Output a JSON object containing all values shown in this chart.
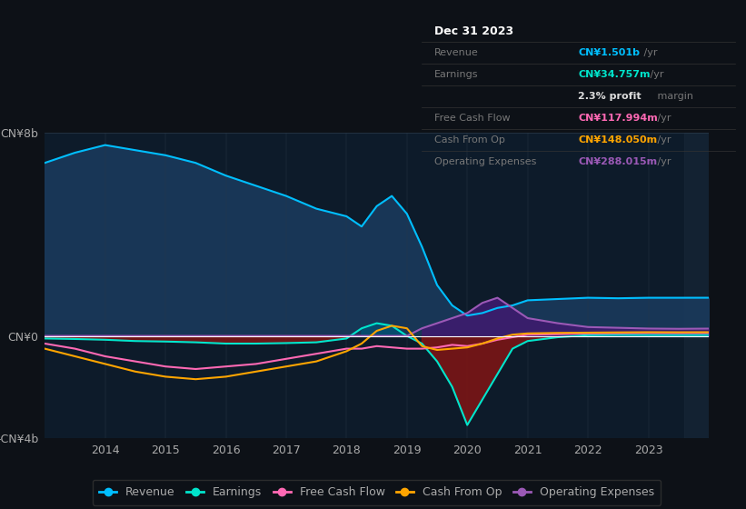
{
  "background_color": "#0d1117",
  "plot_bg_color": "#0d1b2a",
  "ylim": [
    -4000000000,
    8000000000
  ],
  "ytick_labels": [
    "-CN¥4b",
    "CN¥0",
    "CN¥8b"
  ],
  "years": [
    2013.0,
    2013.5,
    2014.0,
    2014.5,
    2015.0,
    2015.5,
    2016.0,
    2016.5,
    2017.0,
    2017.5,
    2018.0,
    2018.25,
    2018.5,
    2018.75,
    2019.0,
    2019.25,
    2019.5,
    2019.75,
    2020.0,
    2020.25,
    2020.5,
    2020.75,
    2021.0,
    2021.5,
    2022.0,
    2022.5,
    2023.0,
    2023.5,
    2024.0
  ],
  "revenue": [
    6800000000,
    7200000000,
    7500000000,
    7300000000,
    7100000000,
    6800000000,
    6300000000,
    5900000000,
    5500000000,
    5000000000,
    4700000000,
    4300000000,
    5100000000,
    5500000000,
    4800000000,
    3500000000,
    2000000000,
    1200000000,
    800000000,
    900000000,
    1100000000,
    1200000000,
    1400000000,
    1450000000,
    1500000000,
    1480000000,
    1500000000,
    1500000000,
    1501000000
  ],
  "earnings": [
    -100000000,
    -120000000,
    -150000000,
    -200000000,
    -220000000,
    -250000000,
    -300000000,
    -300000000,
    -280000000,
    -250000000,
    -100000000,
    300000000,
    500000000,
    400000000,
    0,
    -300000000,
    -1000000000,
    -2000000000,
    -3500000000,
    -2500000000,
    -1500000000,
    -500000000,
    -200000000,
    -50000000,
    30000000,
    40000000,
    35000000,
    34000000,
    35000000
  ],
  "free_cash_flow": [
    -300000000,
    -500000000,
    -800000000,
    -1000000000,
    -1200000000,
    -1300000000,
    -1200000000,
    -1100000000,
    -900000000,
    -700000000,
    -500000000,
    -500000000,
    -400000000,
    -450000000,
    -500000000,
    -500000000,
    -450000000,
    -350000000,
    -400000000,
    -300000000,
    -150000000,
    -50000000,
    50000000,
    70000000,
    100000000,
    110000000,
    118000000,
    115000000,
    118000000
  ],
  "cash_from_op": [
    -500000000,
    -800000000,
    -1100000000,
    -1400000000,
    -1600000000,
    -1700000000,
    -1600000000,
    -1400000000,
    -1200000000,
    -1000000000,
    -600000000,
    -300000000,
    200000000,
    400000000,
    300000000,
    -400000000,
    -550000000,
    -500000000,
    -450000000,
    -300000000,
    -100000000,
    50000000,
    100000000,
    120000000,
    130000000,
    140000000,
    148000000,
    145000000,
    148000000
  ],
  "operating_expenses": [
    0,
    0,
    0,
    0,
    0,
    0,
    0,
    0,
    0,
    0,
    0,
    0,
    0,
    0,
    0,
    300000000,
    500000000,
    700000000,
    900000000,
    1300000000,
    1500000000,
    1100000000,
    700000000,
    500000000,
    350000000,
    320000000,
    290000000,
    280000000,
    288000000
  ],
  "revenue_color": "#00bfff",
  "revenue_fill": "#1a3a5c",
  "earnings_color": "#00e5cc",
  "earnings_fill_neg": "#7b1515",
  "earnings_fill_pos": "#005577",
  "free_cash_flow_color": "#ff69b4",
  "cash_from_op_color": "#ffa500",
  "operating_expenses_color": "#9b59b6",
  "operating_expenses_fill": "#3d1c6e",
  "legend_items": [
    {
      "label": "Revenue",
      "color": "#00bfff"
    },
    {
      "label": "Earnings",
      "color": "#00e5cc"
    },
    {
      "label": "Free Cash Flow",
      "color": "#ff69b4"
    },
    {
      "label": "Cash From Op",
      "color": "#ffa500"
    },
    {
      "label": "Operating Expenses",
      "color": "#9b59b6"
    }
  ],
  "xtick_years": [
    2014,
    2015,
    2016,
    2017,
    2018,
    2019,
    2020,
    2021,
    2022,
    2023
  ],
  "grid_color": "#2a3a4a",
  "text_color": "#aaaaaa",
  "info_rows": [
    {
      "label": "Dec 31 2023",
      "value": null,
      "color": null,
      "is_title": true
    },
    {
      "label": "Revenue",
      "value": "CN¥1.501b /yr",
      "color": "#00bfff",
      "is_title": false
    },
    {
      "label": "Earnings",
      "value": "CN¥34.757m /yr",
      "color": "#00e5cc",
      "is_title": false
    },
    {
      "label": "",
      "value": "2.3% profit margin",
      "color": "#dddddd",
      "is_title": false
    },
    {
      "label": "Free Cash Flow",
      "value": "CN¥117.994m /yr",
      "color": "#ff69b4",
      "is_title": false
    },
    {
      "label": "Cash From Op",
      "value": "CN¥148.050m /yr",
      "color": "#ffa500",
      "is_title": false
    },
    {
      "label": "Operating Expenses",
      "value": "CN¥288.015m /yr",
      "color": "#9b59b6",
      "is_title": false
    }
  ]
}
